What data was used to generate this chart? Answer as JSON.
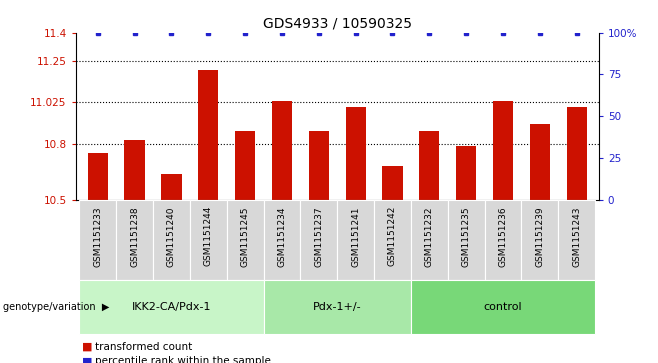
{
  "title": "GDS4933 / 10590325",
  "samples": [
    "GSM1151233",
    "GSM1151238",
    "GSM1151240",
    "GSM1151244",
    "GSM1151245",
    "GSM1151234",
    "GSM1151237",
    "GSM1151241",
    "GSM1151242",
    "GSM1151232",
    "GSM1151235",
    "GSM1151236",
    "GSM1151239",
    "GSM1151243"
  ],
  "bar_values": [
    10.75,
    10.82,
    10.64,
    11.2,
    10.87,
    11.03,
    10.87,
    11.0,
    10.68,
    10.87,
    10.79,
    11.03,
    10.91,
    11.0
  ],
  "bar_color": "#cc1100",
  "dot_color": "#2222cc",
  "ylim_left": [
    10.5,
    11.4
  ],
  "ylim_right": [
    0,
    100
  ],
  "yticks_left": [
    10.5,
    10.8,
    11.025,
    11.25,
    11.4
  ],
  "ytick_labels_left": [
    "10.5",
    "10.8",
    "11.025",
    "11.25",
    "11.4"
  ],
  "yticks_right": [
    0,
    25,
    50,
    75,
    100
  ],
  "ytick_labels_right": [
    "0",
    "25",
    "50",
    "75",
    "100%"
  ],
  "hlines": [
    10.8,
    11.025,
    11.25
  ],
  "group_labels": [
    "IKK2-CA/Pdx-1",
    "Pdx-1+/-",
    "control"
  ],
  "group_starts": [
    0,
    5,
    9
  ],
  "group_ends": [
    5,
    9,
    14
  ],
  "group_colors": [
    "#c8f5c8",
    "#a8e8a8",
    "#78d878"
  ],
  "genotype_label": "genotype/variation",
  "legend_red_label": "transformed count",
  "legend_blue_label": "percentile rank within the sample",
  "sample_box_color": "#d8d8d8",
  "plot_bg": "#ffffff"
}
